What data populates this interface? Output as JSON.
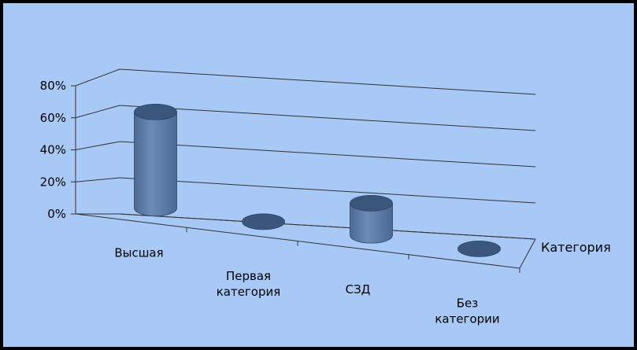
{
  "chart_data": {
    "type": "bar",
    "style": "3d-cylinder",
    "title": "",
    "xlabel": "Категория",
    "ylabel": "",
    "categories": [
      [
        "Высшая"
      ],
      [
        "Первая",
        "категория"
      ],
      [
        "СЗД"
      ],
      [
        "Без",
        "категории"
      ]
    ],
    "values": [
      60,
      0,
      20,
      0
    ],
    "yticks": [
      "0%",
      "20%",
      "40%",
      "60%",
      "80%"
    ],
    "ylim": [
      0,
      80
    ],
    "grid": true,
    "legend": "none",
    "colors": {
      "background": "#a8c8f5",
      "bar_body": "#4a6a94",
      "bar_highlight": "#6c8cb8",
      "bar_top": "#3b567c",
      "grid": "#333333"
    }
  }
}
